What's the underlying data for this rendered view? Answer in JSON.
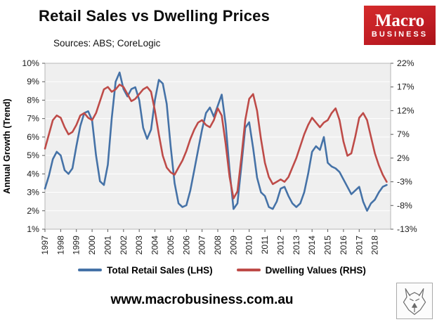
{
  "header": {
    "title": "Retail Sales vs Dwelling Prices",
    "sources": "Sources: ABS; CoreLogic"
  },
  "logo": {
    "line1": "Macro",
    "line2": "BUSINESS",
    "bg_color": "#c01d24"
  },
  "legend": [
    {
      "label": "Total Retail Sales (LHS)",
      "color": "#4572A7"
    },
    {
      "label": "Dwelling Values (RHS)",
      "color": "#BE4B48"
    }
  ],
  "footer": {
    "url": "www.macrobusiness.com.au",
    "wolf_logo": "wolf-sketch-icon"
  },
  "chart_data": {
    "type": "line",
    "title": "Retail Sales vs Dwelling Prices",
    "ylabel_left": "Annual Growth (Trend)",
    "x_start": 1997,
    "x_step": 0.25,
    "x_range": [
      1997,
      2019
    ],
    "x_tick_labels": [
      "1997",
      "1998",
      "1999",
      "2000",
      "2001",
      "2002",
      "2003",
      "2004",
      "2005",
      "2006",
      "2007",
      "2008",
      "2009",
      "2010",
      "2011",
      "2012",
      "2013",
      "2014",
      "2015",
      "2016",
      "2017",
      "2018"
    ],
    "axes": {
      "left": {
        "min": 1,
        "max": 10,
        "step": 1,
        "suffix": "%"
      },
      "right": {
        "min": -13,
        "max": 22,
        "step": 5,
        "suffix": "%"
      }
    },
    "grid": "horizontal-white-on-gray",
    "plot_bg": "#efefef",
    "legend_position": "bottom",
    "series": [
      {
        "name": "Total Retail Sales (LHS)",
        "axis": "left",
        "color": "#4572A7",
        "values": [
          3.2,
          3.9,
          4.8,
          5.2,
          5.0,
          4.2,
          4.0,
          4.3,
          5.5,
          6.6,
          7.3,
          7.4,
          6.9,
          5.0,
          3.6,
          3.4,
          4.5,
          7.0,
          9.0,
          9.5,
          8.6,
          8.2,
          8.6,
          8.7,
          8.0,
          6.5,
          5.9,
          6.4,
          8.0,
          9.1,
          8.9,
          7.8,
          5.5,
          3.5,
          2.4,
          2.2,
          2.3,
          3.1,
          4.2,
          5.3,
          6.4,
          7.3,
          7.6,
          7.1,
          7.7,
          8.3,
          6.7,
          4.2,
          2.1,
          2.4,
          4.4,
          6.5,
          6.8,
          5.4,
          3.8,
          3.0,
          2.8,
          2.2,
          2.1,
          2.5,
          3.2,
          3.3,
          2.8,
          2.4,
          2.2,
          2.4,
          3.0,
          4.0,
          5.2,
          5.5,
          5.3,
          6.0,
          4.6,
          4.4,
          4.3,
          4.1,
          3.7,
          3.3,
          2.9,
          3.1,
          3.3,
          2.5,
          2.0,
          2.4,
          2.6,
          3.0,
          3.3,
          3.4
        ]
      },
      {
        "name": "Dwelling Values (RHS)",
        "axis": "right",
        "color": "#BE4B48",
        "values": [
          4.0,
          7.0,
          10.0,
          11.0,
          10.5,
          8.5,
          7.0,
          7.5,
          9.0,
          11.0,
          11.5,
          10.5,
          10.0,
          11.5,
          14.0,
          16.5,
          17.0,
          16.0,
          16.5,
          17.5,
          17.0,
          15.5,
          14.0,
          14.5,
          15.5,
          16.5,
          17.0,
          16.0,
          12.0,
          7.0,
          2.5,
          0.0,
          -1.0,
          -1.5,
          0.0,
          1.5,
          3.5,
          6.0,
          8.0,
          9.5,
          10.0,
          9.0,
          8.5,
          10.0,
          12.5,
          11.0,
          5.0,
          -2.0,
          -6.5,
          -5.0,
          2.0,
          10.0,
          14.5,
          15.5,
          12.0,
          6.0,
          1.0,
          -2.0,
          -3.5,
          -3.0,
          -2.5,
          -3.0,
          -2.0,
          0.0,
          2.0,
          4.5,
          7.0,
          9.0,
          10.5,
          9.5,
          8.5,
          9.5,
          10.0,
          11.5,
          12.5,
          10.0,
          5.5,
          2.5,
          3.0,
          6.5,
          10.5,
          11.5,
          10.0,
          6.5,
          3.0,
          0.5,
          -1.5,
          -3.0
        ]
      }
    ]
  }
}
